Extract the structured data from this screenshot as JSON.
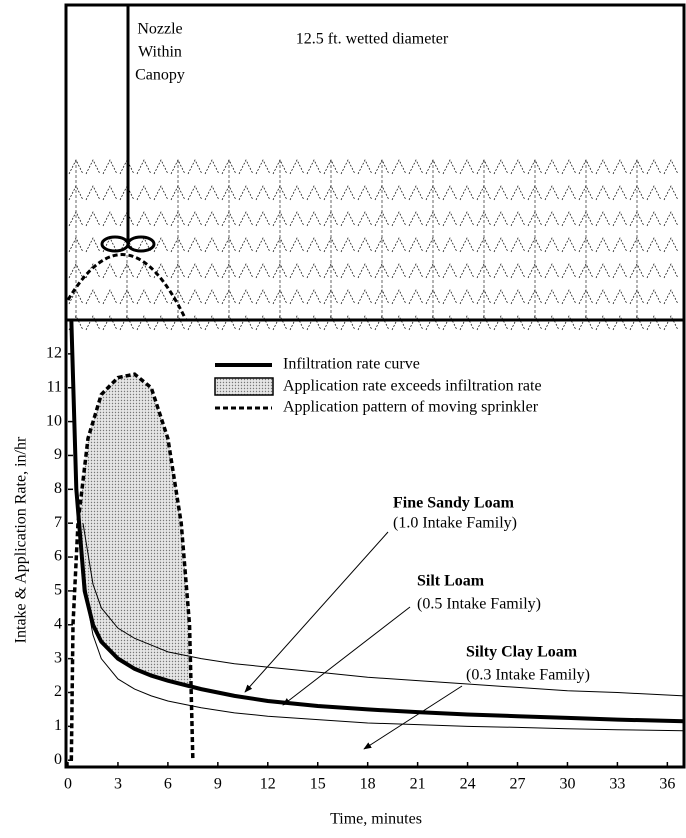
{
  "chart_data": {
    "type": "line",
    "top_panel": {
      "nozzle_label": [
        "Nozzle",
        "Within",
        "Canopy"
      ],
      "diameter_label": "12.5 ft. wetted diameter"
    },
    "xlabel": "Time, minutes",
    "ylabel": "Intake & Application Rate, in/hr",
    "xlim": [
      0,
      37
    ],
    "ylim": [
      -0.2,
      13
    ],
    "xticks": [
      0,
      3,
      6,
      9,
      12,
      15,
      18,
      21,
      24,
      27,
      30,
      33,
      36
    ],
    "yticks": [
      0,
      1,
      2,
      3,
      4,
      5,
      6,
      7,
      8,
      9,
      10,
      11,
      12
    ],
    "legend": [
      "Infiltration rate curve",
      "Application rate exceeds infiltration rate",
      "Application pattern of moving sprinkler"
    ],
    "series": [
      {
        "name": "Fine Sandy Loam",
        "family": "(1.0 Intake Family)",
        "color": "#000000",
        "width": 1,
        "x": [
          0.9,
          1.5,
          2,
          3,
          4,
          5,
          6,
          8,
          10,
          12,
          15,
          18,
          21,
          24,
          27,
          30,
          33,
          37
        ],
        "values": [
          7,
          5.2,
          4.5,
          3.9,
          3.6,
          3.4,
          3.2,
          3,
          2.85,
          2.75,
          2.6,
          2.45,
          2.35,
          2.25,
          2.15,
          2.05,
          2,
          1.9
        ]
      },
      {
        "name": "Silt Loam",
        "family": "(0.5 Intake Family)",
        "color": "#000000",
        "width": 4,
        "x": [
          0.2,
          0.5,
          1,
          1.5,
          2,
          3,
          4,
          5,
          6,
          8,
          10,
          12,
          15,
          18,
          21,
          24,
          27,
          30,
          33,
          37
        ],
        "values": [
          13,
          8,
          5,
          4,
          3.5,
          3,
          2.7,
          2.5,
          2.35,
          2.1,
          1.9,
          1.75,
          1.6,
          1.5,
          1.42,
          1.35,
          1.3,
          1.25,
          1.2,
          1.15
        ]
      },
      {
        "name": "Silty Clay Loam",
        "family": "(0.3 Intake Family)",
        "color": "#000000",
        "width": 1,
        "x": [
          0.8,
          1.2,
          1.5,
          2,
          3,
          4,
          5,
          6,
          8,
          10,
          12,
          15,
          18,
          21,
          24,
          27,
          30,
          33,
          37
        ],
        "values": [
          6.5,
          4.5,
          3.7,
          3,
          2.4,
          2.1,
          1.9,
          1.75,
          1.55,
          1.4,
          1.3,
          1.2,
          1.1,
          1.05,
          1,
          0.97,
          0.93,
          0.9,
          0.87
        ]
      }
    ],
    "application": {
      "color": "#000000",
      "x": [
        0.2,
        0.3,
        0.6,
        1.2,
        2,
        3,
        4,
        5,
        6,
        6.8,
        7.3,
        7.5
      ],
      "values": [
        0,
        4,
        7,
        9.5,
        10.8,
        11.3,
        11.4,
        11,
        9.5,
        7,
        4,
        0
      ]
    }
  }
}
